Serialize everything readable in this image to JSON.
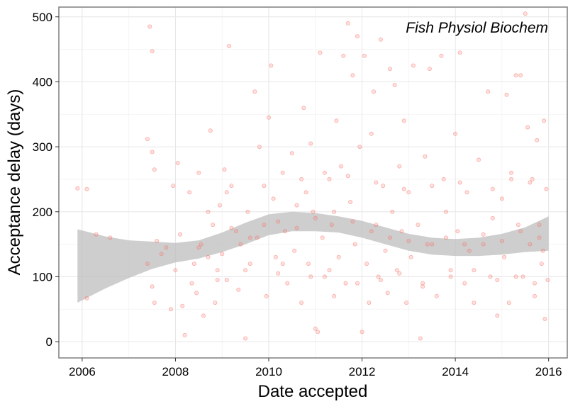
{
  "chart_data": {
    "type": "scatter",
    "annotation": "Fish Physiol Biochem",
    "xlabel": "Date accepted",
    "ylabel": "Acceptance delay (days)",
    "xlim": [
      2005.5,
      2016.4
    ],
    "ylim": [
      -25,
      515
    ],
    "x_ticks": [
      2006,
      2008,
      2010,
      2012,
      2014,
      2016
    ],
    "y_ticks": [
      0,
      100,
      200,
      300,
      400,
      500
    ],
    "grid": true,
    "point_color": "#f8766d",
    "band_color": "#bdbdbd",
    "points": [
      [
        2005.9,
        236
      ],
      [
        2006.1,
        235
      ],
      [
        2006.1,
        67
      ],
      [
        2006.3,
        165
      ],
      [
        2006.6,
        160
      ],
      [
        2007.4,
        312
      ],
      [
        2007.45,
        485
      ],
      [
        2007.5,
        447
      ],
      [
        2007.5,
        292
      ],
      [
        2007.55,
        265
      ],
      [
        2007.4,
        120
      ],
      [
        2007.5,
        85
      ],
      [
        2007.55,
        60
      ],
      [
        2007.6,
        155
      ],
      [
        2007.7,
        135
      ],
      [
        2007.8,
        145
      ],
      [
        2007.9,
        50
      ],
      [
        2007.95,
        240
      ],
      [
        2008.0,
        110
      ],
      [
        2008.05,
        275
      ],
      [
        2008.1,
        165
      ],
      [
        2008.15,
        55
      ],
      [
        2008.2,
        10
      ],
      [
        2008.3,
        230
      ],
      [
        2008.35,
        90
      ],
      [
        2008.4,
        120
      ],
      [
        2008.45,
        75
      ],
      [
        2008.5,
        260
      ],
      [
        2008.55,
        150
      ],
      [
        2008.6,
        40
      ],
      [
        2008.7,
        200
      ],
      [
        2008.75,
        325
      ],
      [
        2008.8,
        180
      ],
      [
        2008.85,
        60
      ],
      [
        2008.9,
        110
      ],
      [
        2008.95,
        210
      ],
      [
        2009.0,
        135
      ],
      [
        2009.05,
        265
      ],
      [
        2009.1,
        95
      ],
      [
        2009.15,
        455
      ],
      [
        2009.2,
        240
      ],
      [
        2009.3,
        170
      ],
      [
        2009.35,
        80
      ],
      [
        2009.4,
        150
      ],
      [
        2009.5,
        5
      ],
      [
        2009.55,
        200
      ],
      [
        2009.6,
        120
      ],
      [
        2009.7,
        385
      ],
      [
        2009.75,
        160
      ],
      [
        2009.8,
        300
      ],
      [
        2009.9,
        180
      ],
      [
        2009.95,
        70
      ],
      [
        2010.0,
        345
      ],
      [
        2010.05,
        425
      ],
      [
        2010.1,
        220
      ],
      [
        2010.15,
        130
      ],
      [
        2010.2,
        105
      ],
      [
        2010.3,
        260
      ],
      [
        2010.35,
        170
      ],
      [
        2010.4,
        90
      ],
      [
        2010.5,
        290
      ],
      [
        2010.55,
        140
      ],
      [
        2010.6,
        210
      ],
      [
        2010.7,
        60
      ],
      [
        2010.75,
        360
      ],
      [
        2010.8,
        230
      ],
      [
        2010.85,
        120
      ],
      [
        2010.9,
        305
      ],
      [
        2010.95,
        200
      ],
      [
        2011.0,
        20
      ],
      [
        2011.05,
        15
      ],
      [
        2011.1,
        445
      ],
      [
        2011.15,
        160
      ],
      [
        2011.2,
        100
      ],
      [
        2011.3,
        250
      ],
      [
        2011.35,
        180
      ],
      [
        2011.4,
        70
      ],
      [
        2011.45,
        340
      ],
      [
        2011.5,
        130
      ],
      [
        2011.55,
        270
      ],
      [
        2011.6,
        440
      ],
      [
        2011.65,
        90
      ],
      [
        2011.7,
        490
      ],
      [
        2011.75,
        215
      ],
      [
        2011.8,
        410
      ],
      [
        2011.85,
        150
      ],
      [
        2011.9,
        470
      ],
      [
        2011.95,
        300
      ],
      [
        2012.0,
        15
      ],
      [
        2012.05,
        440
      ],
      [
        2012.1,
        120
      ],
      [
        2012.15,
        60
      ],
      [
        2012.2,
        320
      ],
      [
        2012.25,
        385
      ],
      [
        2012.3,
        180
      ],
      [
        2012.35,
        100
      ],
      [
        2012.4,
        465
      ],
      [
        2012.45,
        240
      ],
      [
        2012.5,
        140
      ],
      [
        2012.55,
        75
      ],
      [
        2012.6,
        420
      ],
      [
        2012.65,
        200
      ],
      [
        2012.7,
        395
      ],
      [
        2012.75,
        110
      ],
      [
        2012.8,
        270
      ],
      [
        2012.85,
        170
      ],
      [
        2012.9,
        340
      ],
      [
        2012.95,
        60
      ],
      [
        2013.0,
        230
      ],
      [
        2013.05,
        130
      ],
      [
        2013.1,
        425
      ],
      [
        2013.2,
        180
      ],
      [
        2013.25,
        5
      ],
      [
        2013.3,
        90
      ],
      [
        2013.35,
        285
      ],
      [
        2013.45,
        420
      ],
      [
        2013.5,
        150
      ],
      [
        2013.6,
        70
      ],
      [
        2013.7,
        440
      ],
      [
        2013.75,
        250
      ],
      [
        2013.8,
        200
      ],
      [
        2013.9,
        110
      ],
      [
        2014.0,
        320
      ],
      [
        2014.05,
        170
      ],
      [
        2014.1,
        445
      ],
      [
        2014.2,
        90
      ],
      [
        2014.25,
        230
      ],
      [
        2014.3,
        140
      ],
      [
        2014.4,
        60
      ],
      [
        2014.5,
        280
      ],
      [
        2014.6,
        150
      ],
      [
        2014.7,
        385
      ],
      [
        2014.75,
        100
      ],
      [
        2014.8,
        190
      ],
      [
        2014.9,
        40
      ],
      [
        2015.0,
        220
      ],
      [
        2015.05,
        130
      ],
      [
        2015.1,
        380
      ],
      [
        2015.15,
        60
      ],
      [
        2015.2,
        260
      ],
      [
        2015.3,
        410
      ],
      [
        2015.35,
        180
      ],
      [
        2015.4,
        410
      ],
      [
        2015.45,
        100
      ],
      [
        2015.5,
        505
      ],
      [
        2015.55,
        330
      ],
      [
        2015.6,
        150
      ],
      [
        2015.65,
        250
      ],
      [
        2015.7,
        70
      ],
      [
        2015.75,
        310
      ],
      [
        2015.8,
        180
      ],
      [
        2015.85,
        120
      ],
      [
        2015.9,
        340
      ],
      [
        2015.95,
        235
      ],
      [
        2015.98,
        95
      ],
      [
        2015.92,
        35
      ],
      [
        2015.88,
        140
      ],
      [
        2008.5,
        145
      ],
      [
        2008.7,
        130
      ],
      [
        2009.2,
        175
      ],
      [
        2009.6,
        160
      ],
      [
        2010.2,
        185
      ],
      [
        2010.6,
        175
      ],
      [
        2011.0,
        190
      ],
      [
        2011.4,
        200
      ],
      [
        2011.8,
        185
      ],
      [
        2012.2,
        170
      ],
      [
        2012.6,
        160
      ],
      [
        2013.0,
        155
      ],
      [
        2013.4,
        150
      ],
      [
        2013.8,
        160
      ],
      [
        2014.2,
        150
      ],
      [
        2014.6,
        165
      ],
      [
        2015.0,
        155
      ],
      [
        2015.4,
        170
      ],
      [
        2015.8,
        160
      ],
      [
        2008.9,
        95
      ],
      [
        2009.5,
        110
      ],
      [
        2010.3,
        120
      ],
      [
        2010.9,
        100
      ],
      [
        2011.3,
        110
      ],
      [
        2011.9,
        90
      ],
      [
        2012.4,
        95
      ],
      [
        2012.8,
        105
      ],
      [
        2013.3,
        85
      ],
      [
        2013.9,
        100
      ],
      [
        2014.4,
        110
      ],
      [
        2014.9,
        95
      ],
      [
        2015.3,
        100
      ],
      [
        2015.7,
        90
      ],
      [
        2009.1,
        230
      ],
      [
        2009.9,
        240
      ],
      [
        2010.7,
        250
      ],
      [
        2011.2,
        260
      ],
      [
        2011.7,
        255
      ],
      [
        2012.3,
        245
      ],
      [
        2012.9,
        235
      ],
      [
        2013.5,
        240
      ],
      [
        2014.1,
        245
      ],
      [
        2014.8,
        235
      ],
      [
        2015.2,
        250
      ],
      [
        2015.6,
        245
      ]
    ],
    "band": {
      "x": [
        2005.9,
        2006.5,
        2007.0,
        2007.5,
        2008.0,
        2008.5,
        2009.0,
        2009.5,
        2010.0,
        2010.5,
        2011.0,
        2011.5,
        2012.0,
        2012.5,
        2013.0,
        2013.5,
        2014.0,
        2014.5,
        2015.0,
        2015.5,
        2016.0
      ],
      "lower": [
        60,
        82,
        98,
        112,
        122,
        128,
        138,
        150,
        164,
        170,
        170,
        168,
        160,
        150,
        140,
        134,
        132,
        132,
        134,
        138,
        140
      ],
      "upper": [
        173,
        162,
        156,
        154,
        152,
        156,
        168,
        183,
        196,
        200,
        198,
        193,
        186,
        176,
        166,
        160,
        158,
        160,
        166,
        176,
        193
      ]
    }
  }
}
